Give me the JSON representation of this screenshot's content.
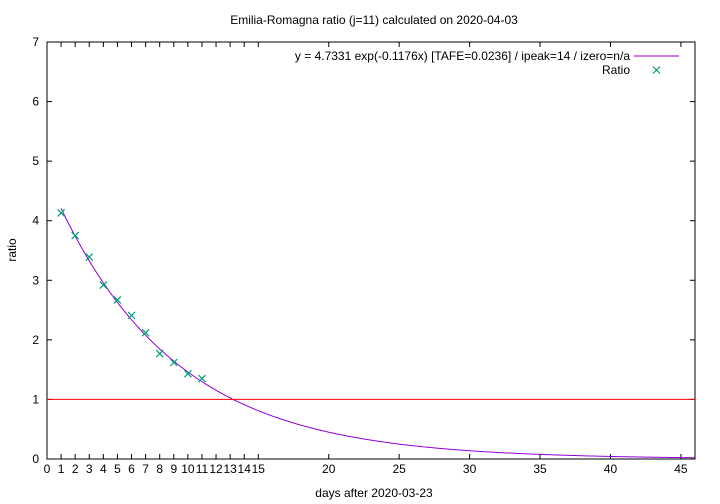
{
  "chart_data": {
    "type": "scatter",
    "title": "Emilia-Romagna ratio (j=11) calculated on 2020-04-03",
    "xlabel": "days after 2020-03-23",
    "ylabel": "ratio",
    "xlim": [
      0,
      46
    ],
    "ylim": [
      0,
      7
    ],
    "x_ticks": [
      0,
      1,
      2,
      3,
      4,
      5,
      6,
      7,
      8,
      9,
      10,
      11,
      12,
      13,
      14,
      15,
      20,
      25,
      30,
      35,
      40,
      45
    ],
    "y_ticks": [
      0,
      1,
      2,
      3,
      4,
      5,
      6,
      7
    ],
    "grid": false,
    "legend_position": "top-right",
    "series": [
      {
        "name": "y = 4.7331 exp(-0.1176x)  [TAFE=0.0236] / ipeak=14 / izero=n/a",
        "kind": "line",
        "color": "#9400d3",
        "function": {
          "a": 4.7331,
          "b": -0.1176,
          "x_start": 1,
          "x_end": 46
        }
      },
      {
        "name": "Ratio",
        "kind": "points",
        "marker": "x",
        "color": "#009e73",
        "x": [
          1,
          2,
          3,
          4,
          5,
          6,
          7,
          8,
          9,
          10,
          11
        ],
        "y": [
          4.13,
          3.75,
          3.39,
          2.92,
          2.67,
          2.41,
          2.12,
          1.77,
          1.62,
          1.43,
          1.35
        ]
      },
      {
        "kind": "hline",
        "y": 1,
        "color": "#ff0000"
      }
    ]
  }
}
